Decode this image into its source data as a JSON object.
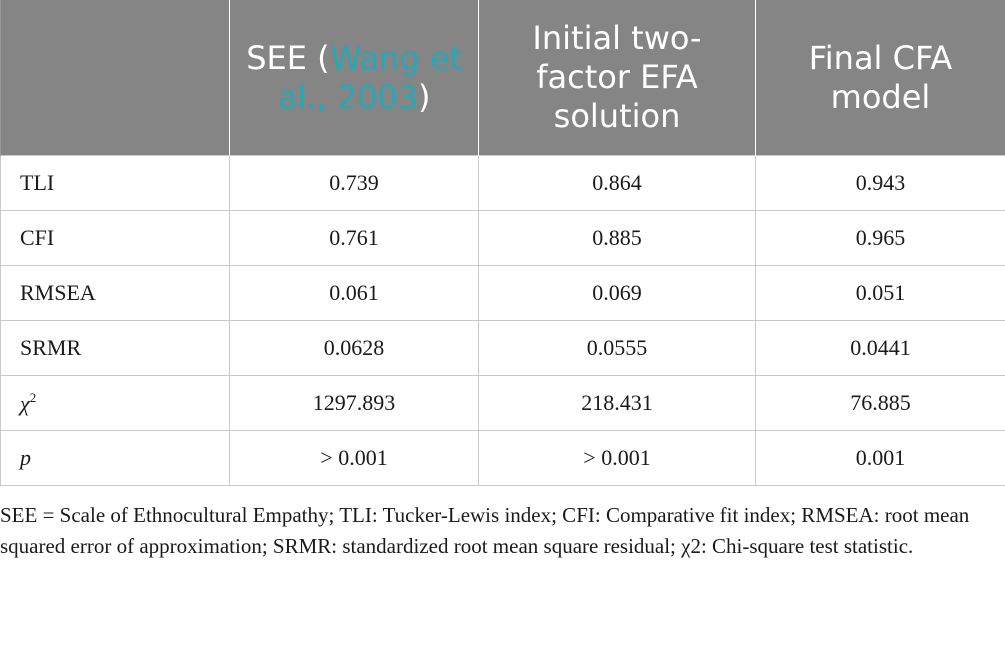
{
  "table": {
    "headers": [
      {
        "text": ""
      },
      {
        "pre": "SEE (",
        "cite": "Wang et al., 2003",
        "post": ")"
      },
      {
        "text": "Initial two-factor EFA solution"
      },
      {
        "text": "Final CFA model"
      }
    ],
    "rows": [
      {
        "label": "TLI",
        "values": [
          "0.739",
          "0.864",
          "0.943"
        ]
      },
      {
        "label": "CFI",
        "values": [
          "0.761",
          "0.885",
          "0.965"
        ]
      },
      {
        "label": "RMSEA",
        "values": [
          "0.061",
          "0.069",
          "0.051"
        ]
      },
      {
        "label": "SRMR",
        "values": [
          "0.0628",
          "0.0555",
          "0.0441"
        ]
      },
      {
        "label": "χ",
        "label_sup": "2",
        "values": [
          "1297.893",
          "218.431",
          "76.885"
        ]
      },
      {
        "label": "p",
        "values": [
          "> 0.001",
          "> 0.001",
          "0.001"
        ]
      }
    ]
  },
  "footnote": "SEE = Scale of Ethnocultural Empathy; TLI: Tucker-Lewis index; CFI: Comparative fit index; RMSEA: root mean squared error of approximation; SRMR: standardized root mean square residual; χ2: Chi-square test statistic."
}
